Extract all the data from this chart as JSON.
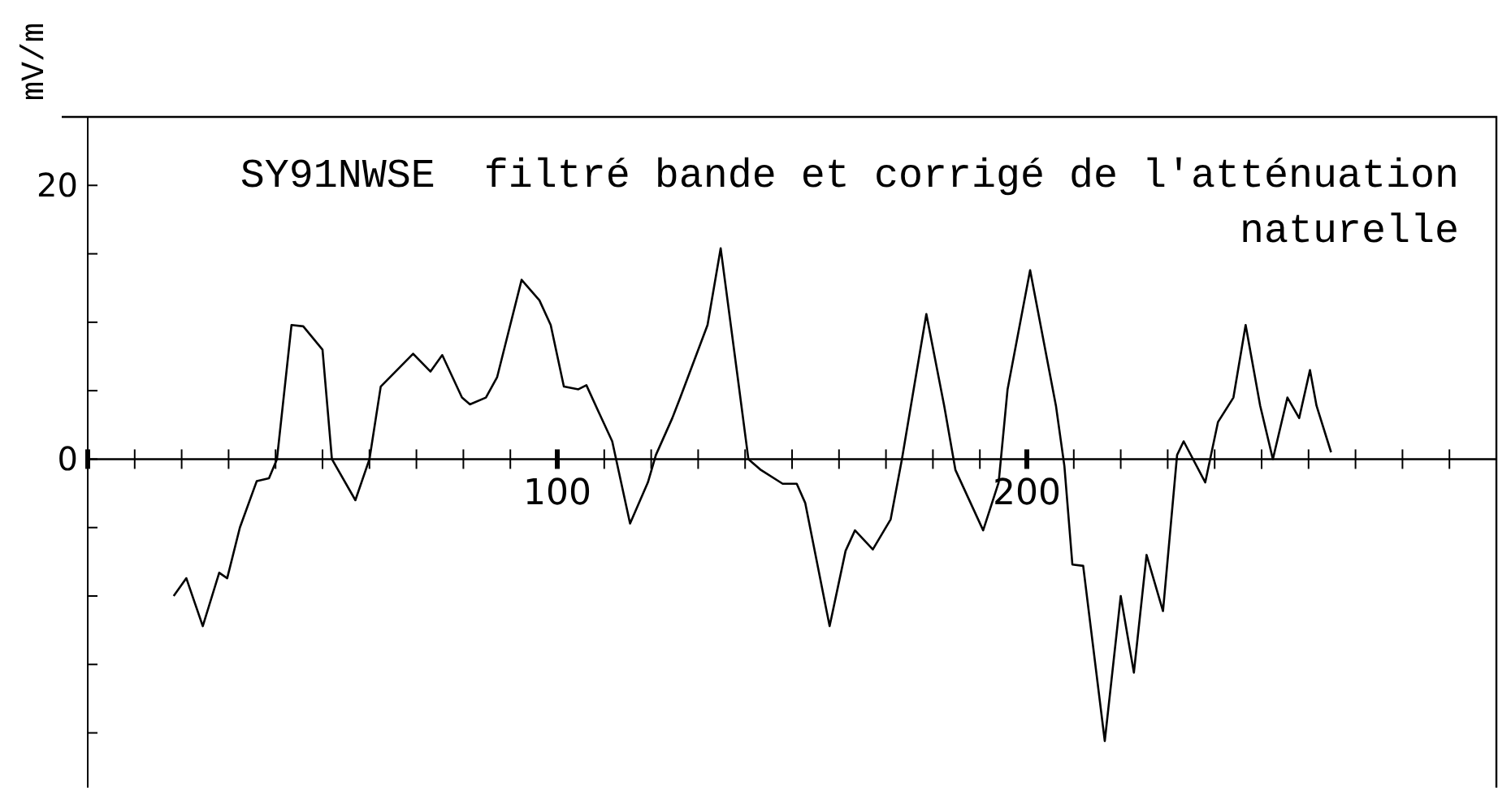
{
  "chart_data": {
    "type": "line",
    "title": "SY91NWSE  filtré bande et corrigé de l'atténuation naturelle",
    "ylabel": "mV/m",
    "xlim": [
      0,
      300
    ],
    "xticks": [
      {
        "value": 0,
        "label": null
      },
      {
        "value": 10,
        "label": null
      },
      {
        "value": 20,
        "label": null
      },
      {
        "value": 30,
        "label": null
      },
      {
        "value": 40,
        "label": null
      },
      {
        "value": 50,
        "label": null
      },
      {
        "value": 60,
        "label": null
      },
      {
        "value": 70,
        "label": null
      },
      {
        "value": 80,
        "label": null
      },
      {
        "value": 90,
        "label": null
      },
      100,
      {
        "value": 110,
        "label": null
      },
      {
        "value": 120,
        "label": null
      },
      {
        "value": 130,
        "label": null
      },
      {
        "value": 140,
        "label": null
      },
      {
        "value": 150,
        "label": null
      },
      {
        "value": 160,
        "label": null
      },
      {
        "value": 170,
        "label": null
      },
      {
        "value": 180,
        "label": null
      },
      {
        "value": 190,
        "label": null
      },
      200,
      {
        "value": 210,
        "label": null
      },
      {
        "value": 220,
        "label": null
      },
      {
        "value": 230,
        "label": null
      },
      {
        "value": 240,
        "label": null
      },
      {
        "value": 250,
        "label": null
      },
      {
        "value": 260,
        "label": null
      },
      {
        "value": 270,
        "label": null
      },
      {
        "value": 280,
        "label": null
      },
      {
        "value": 290,
        "label": null
      }
    ],
    "ylim": [
      -24,
      25
    ],
    "yticks": [
      {
        "value": -20,
        "label": null
      },
      {
        "value": -15,
        "label": null
      },
      {
        "value": -10,
        "label": null
      },
      {
        "value": -5,
        "label": null
      },
      0,
      {
        "value": 5,
        "label": null
      },
      {
        "value": 10,
        "label": null
      },
      {
        "value": 15,
        "label": null
      },
      20
    ],
    "series": [
      {
        "color": "#000000",
        "x": [
          18.3,
          21,
          24.5,
          28,
          29.7,
          32.4,
          36,
          38.6,
          40.3,
          43.4,
          45.9,
          50,
          52,
          57,
          60,
          62.4,
          69.3,
          73,
          75.5,
          79.7,
          81.4,
          84.8,
          87.2,
          92.4,
          96.2,
          98.6,
          101.4,
          104.5,
          106.2,
          109,
          111.7,
          115.5,
          119.3,
          121,
          124.5,
          126.2,
          132,
          134.8,
          138.3,
          140.7,
          143.4,
          148,
          151,
          152.8,
          158,
          161.4,
          163.4,
          167.2,
          171,
          173.4,
          178.6,
          182.4,
          184.8,
          190.7,
          194,
          195.9,
          200.7,
          206.2,
          208,
          209.7,
          212,
          216.6,
          220,
          222.8,
          225.5,
          229,
          232,
          233.4,
          238,
          240.7,
          244,
          246.6,
          249.7,
          252.4,
          255.5,
          258,
          260.3,
          261.7,
          264.8
        ],
        "values": [
          -10,
          -8.7,
          -12.2,
          -8.3,
          -8.7,
          -5,
          -1.6,
          -1.4,
          0,
          9.8,
          9.7,
          8,
          0,
          -3,
          0,
          5.3,
          7.7,
          6.4,
          7.6,
          4.5,
          4,
          4.5,
          6,
          13.1,
          11.6,
          9.8,
          5.3,
          5.1,
          5.4,
          3.3,
          1.3,
          -4.7,
          -1.7,
          0.3,
          3,
          4.5,
          9.8,
          15.4,
          6.3,
          0,
          -0.8,
          -1.8,
          -1.8,
          -3.2,
          -12.2,
          -6.7,
          -5.2,
          -6.6,
          -4.4,
          0,
          10.6,
          3.9,
          -0.8,
          -5.2,
          -1.7,
          5.1,
          13.8,
          3.9,
          -0.5,
          -7.7,
          -7.8,
          -20.6,
          -10,
          -15.6,
          -7,
          -11.1,
          0.3,
          1.3,
          -1.7,
          2.7,
          4.5,
          9.8,
          3.9,
          0,
          4.5,
          3,
          6.5,
          3.9,
          0.5
        ]
      }
    ]
  }
}
